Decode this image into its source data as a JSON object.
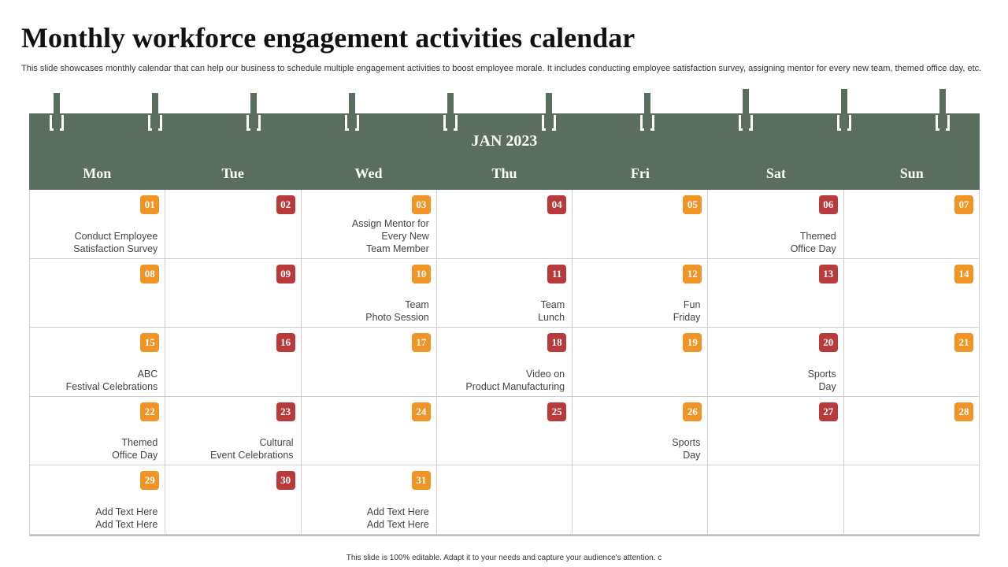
{
  "title": "Monthly workforce engagement activities calendar",
  "subtitle": "This slide showcases monthly calendar that can help our business to schedule multiple engagement activities to boost employee morale. It includes conducting employee satisfaction survey, assigning mentor for every new team, themed office day,  etc.",
  "month": "JAN 2023",
  "weekdays": [
    "Mon",
    "Tue",
    "Wed",
    "Thu",
    "Fri",
    "Sat",
    "Sun"
  ],
  "colors": {
    "header": "#5a6e5f",
    "badge_orange": "#ef9425",
    "badge_red": "#b83a3a"
  },
  "days": [
    {
      "num": "01",
      "color": "orange",
      "lines": [
        "Conduct Employee",
        "Satisfaction Survey"
      ]
    },
    {
      "num": "02",
      "color": "red",
      "lines": []
    },
    {
      "num": "03",
      "color": "orange",
      "lines": [
        "Assign Mentor for",
        "Every New",
        "Team Member"
      ]
    },
    {
      "num": "04",
      "color": "red",
      "lines": []
    },
    {
      "num": "05",
      "color": "orange",
      "lines": []
    },
    {
      "num": "06",
      "color": "red",
      "lines": [
        "Themed",
        "Office Day"
      ]
    },
    {
      "num": "07",
      "color": "orange",
      "lines": []
    },
    {
      "num": "08",
      "color": "orange",
      "lines": []
    },
    {
      "num": "09",
      "color": "red",
      "lines": []
    },
    {
      "num": "10",
      "color": "orange",
      "lines": [
        "Team",
        "Photo Session"
      ]
    },
    {
      "num": "11",
      "color": "red",
      "lines": [
        "Team",
        "Lunch"
      ]
    },
    {
      "num": "12",
      "color": "orange",
      "lines": [
        "Fun",
        "Friday"
      ]
    },
    {
      "num": "13",
      "color": "red",
      "lines": []
    },
    {
      "num": "14",
      "color": "orange",
      "lines": []
    },
    {
      "num": "15",
      "color": "orange",
      "lines": [
        "ABC",
        "Festival Celebrations"
      ]
    },
    {
      "num": "16",
      "color": "red",
      "lines": []
    },
    {
      "num": "17",
      "color": "orange",
      "lines": []
    },
    {
      "num": "18",
      "color": "red",
      "lines": [
        "Video on",
        "Product Manufacturing"
      ]
    },
    {
      "num": "19",
      "color": "orange",
      "lines": []
    },
    {
      "num": "20",
      "color": "red",
      "lines": [
        "Sports",
        "Day"
      ]
    },
    {
      "num": "21",
      "color": "orange",
      "lines": []
    },
    {
      "num": "22",
      "color": "orange",
      "lines": [
        "Themed",
        "Office Day"
      ]
    },
    {
      "num": "23",
      "color": "red",
      "lines": [
        "Cultural",
        "Event Celebrations"
      ]
    },
    {
      "num": "24",
      "color": "orange",
      "lines": []
    },
    {
      "num": "25",
      "color": "red",
      "lines": []
    },
    {
      "num": "26",
      "color": "orange",
      "lines": [
        "Sports",
        "Day"
      ]
    },
    {
      "num": "27",
      "color": "red",
      "lines": []
    },
    {
      "num": "28",
      "color": "orange",
      "lines": []
    },
    {
      "num": "29",
      "color": "orange",
      "lines": [
        "Add Text Here",
        "Add Text Here"
      ]
    },
    {
      "num": "30",
      "color": "red",
      "lines": []
    },
    {
      "num": "31",
      "color": "orange",
      "lines": [
        "Add Text Here",
        "Add Text Here"
      ]
    },
    {
      "num": "",
      "color": "",
      "lines": []
    },
    {
      "num": "",
      "color": "",
      "lines": []
    },
    {
      "num": "",
      "color": "",
      "lines": []
    },
    {
      "num": "",
      "color": "",
      "lines": []
    }
  ],
  "footer": "This slide is 100% editable.  Adapt it to your needs and capture your audience's attention. c"
}
